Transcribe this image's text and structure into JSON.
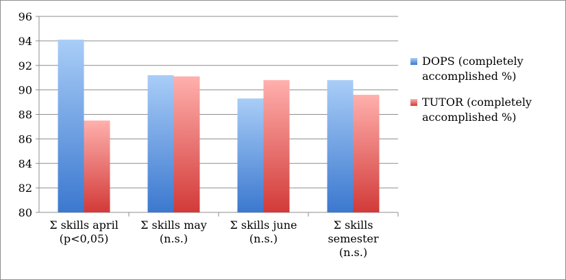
{
  "chart_data": {
    "type": "bar",
    "title": "",
    "xlabel": "",
    "ylabel": "",
    "ylim": [
      80,
      96
    ],
    "y_ticks": [
      80,
      82,
      84,
      86,
      88,
      90,
      92,
      94,
      96
    ],
    "grid": true,
    "legend_placement": "right",
    "categories": [
      [
        "Σ skills april",
        "(p<0,05)"
      ],
      [
        "Σ skills may",
        "(n.s.)"
      ],
      [
        "Σ skills june",
        "(n.s.)"
      ],
      [
        "Σ skills",
        "semester",
        "(n.s.)"
      ]
    ],
    "series": [
      {
        "name": [
          "DOPS (completely",
          "accomplished  %)"
        ],
        "values": [
          94.1,
          91.2,
          89.3,
          90.8
        ],
        "color_top": "#a9cdf7",
        "color_bottom": "#3b78cf"
      },
      {
        "name": [
          "TUTOR (completely",
          "accomplished  %)"
        ],
        "values": [
          87.5,
          91.1,
          90.8,
          89.6
        ],
        "color_top": "#ffb0ad",
        "color_bottom": "#d23a38"
      }
    ]
  }
}
